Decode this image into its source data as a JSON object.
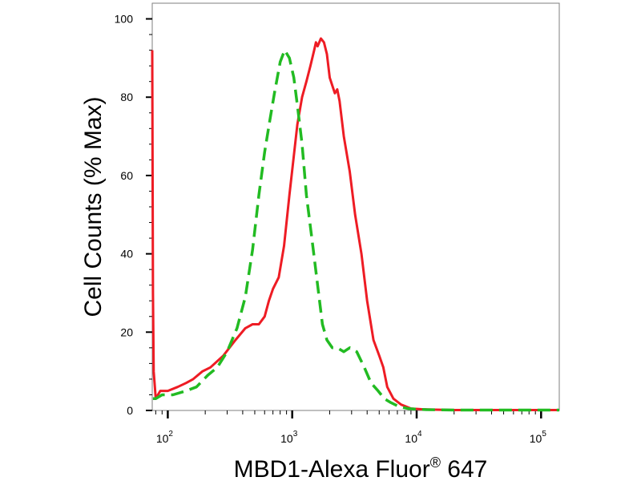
{
  "chart_data": {
    "type": "line",
    "title": "",
    "xlabel_main": "MBD1-Alexa Fluor",
    "xlabel_sup": "®",
    "xlabel_tail": " 647",
    "ylabel": "Cell Counts (% Max)",
    "xscale": "log",
    "xlim": [
      75,
      140000
    ],
    "ylim": [
      0,
      104
    ],
    "grid": false,
    "legend": "none",
    "x_ticks": [
      {
        "value": 100,
        "base": "10",
        "exp": "2"
      },
      {
        "value": 1000,
        "base": "10",
        "exp": "3"
      },
      {
        "value": 10000,
        "base": "10",
        "exp": "4"
      },
      {
        "value": 100000,
        "base": "10",
        "exp": "5"
      }
    ],
    "y_ticks": [
      {
        "value": 0,
        "label": "0"
      },
      {
        "value": 20,
        "label": "20"
      },
      {
        "value": 40,
        "label": "40"
      },
      {
        "value": 60,
        "label": "60"
      },
      {
        "value": 80,
        "label": "80"
      },
      {
        "value": 100,
        "label": "100"
      }
    ],
    "series": [
      {
        "color": "#ee1c24",
        "dash": "solid",
        "points": [
          [
            75,
            92
          ],
          [
            76,
            30
          ],
          [
            77,
            10
          ],
          [
            80,
            3
          ],
          [
            87,
            5
          ],
          [
            100,
            5
          ],
          [
            120,
            6
          ],
          [
            140,
            7
          ],
          [
            160,
            8
          ],
          [
            190,
            10
          ],
          [
            220,
            11
          ],
          [
            280,
            14
          ],
          [
            350,
            18
          ],
          [
            420,
            21
          ],
          [
            480,
            22
          ],
          [
            540,
            22
          ],
          [
            600,
            24
          ],
          [
            650,
            28
          ],
          [
            700,
            31
          ],
          [
            780,
            34
          ],
          [
            860,
            42
          ],
          [
            950,
            55
          ],
          [
            1030,
            65
          ],
          [
            1100,
            73
          ],
          [
            1200,
            80
          ],
          [
            1300,
            84
          ],
          [
            1400,
            88
          ],
          [
            1500,
            92
          ],
          [
            1550,
            94
          ],
          [
            1600,
            93
          ],
          [
            1700,
            95
          ],
          [
            1800,
            94
          ],
          [
            1900,
            91
          ],
          [
            2000,
            85
          ],
          [
            2100,
            83
          ],
          [
            2200,
            81
          ],
          [
            2300,
            82
          ],
          [
            2400,
            79
          ],
          [
            2600,
            70
          ],
          [
            2900,
            61
          ],
          [
            3200,
            50
          ],
          [
            3600,
            40
          ],
          [
            4000,
            28
          ],
          [
            4500,
            18
          ],
          [
            5000,
            14
          ],
          [
            5400,
            11
          ],
          [
            5800,
            6
          ],
          [
            6500,
            3
          ],
          [
            7500,
            1.5
          ],
          [
            9000,
            0.5
          ],
          [
            11000,
            0.3
          ],
          [
            14000,
            0.2
          ],
          [
            20000,
            0.1
          ],
          [
            50000,
            0.1
          ],
          [
            140000,
            0.1
          ]
        ]
      },
      {
        "color": "#22bb22",
        "dash": "dashed",
        "points": [
          [
            76,
            3
          ],
          [
            80,
            3
          ],
          [
            90,
            4
          ],
          [
            110,
            4
          ],
          [
            140,
            5
          ],
          [
            170,
            6
          ],
          [
            210,
            9
          ],
          [
            250,
            11
          ],
          [
            300,
            15
          ],
          [
            360,
            21
          ],
          [
            420,
            29
          ],
          [
            480,
            41
          ],
          [
            540,
            55
          ],
          [
            600,
            66
          ],
          [
            660,
            74
          ],
          [
            720,
            81
          ],
          [
            800,
            89
          ],
          [
            870,
            92
          ],
          [
            950,
            90
          ],
          [
            1030,
            85
          ],
          [
            1100,
            78
          ],
          [
            1200,
            68
          ],
          [
            1300,
            55
          ],
          [
            1450,
            43
          ],
          [
            1600,
            32
          ],
          [
            1750,
            22
          ],
          [
            1900,
            18
          ],
          [
            2100,
            16
          ],
          [
            2300,
            16
          ],
          [
            2600,
            15
          ],
          [
            2900,
            16
          ],
          [
            3300,
            15
          ],
          [
            3800,
            11
          ],
          [
            4300,
            7
          ],
          [
            4900,
            5
          ],
          [
            5500,
            3
          ],
          [
            6200,
            2
          ],
          [
            7200,
            1
          ],
          [
            8500,
            0.5
          ],
          [
            10000,
            0.3
          ],
          [
            12000,
            0.2
          ],
          [
            20000,
            0.1
          ],
          [
            50000,
            0.1
          ],
          [
            140000,
            0.1
          ]
        ]
      }
    ]
  }
}
